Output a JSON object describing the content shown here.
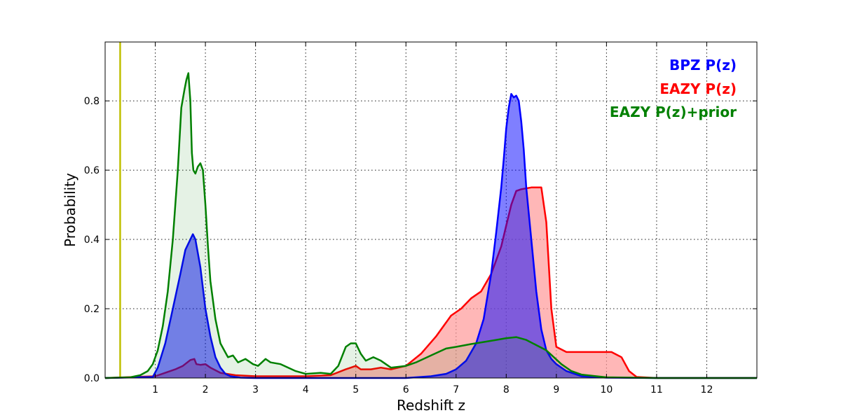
{
  "chart_data": {
    "type": "area",
    "title": "",
    "xlabel": "Redshift z",
    "ylabel": "Probability",
    "xlim": [
      0,
      13
    ],
    "ylim": [
      0,
      0.97
    ],
    "grid": true,
    "legend_placement": "top-right",
    "x_ticks": [
      1,
      2,
      3,
      4,
      5,
      6,
      7,
      8,
      9,
      10,
      11,
      12
    ],
    "y_ticks": [
      0.0,
      0.2,
      0.4,
      0.6,
      0.8
    ],
    "y_tick_labels": [
      "0.0",
      "0.2",
      "0.4",
      "0.6",
      "0.8"
    ],
    "vline": {
      "x": 0.3,
      "color": "#bfbf00"
    },
    "series": [
      {
        "name": "EAZY P(z)",
        "color": "#ff0000",
        "fill": "#ff9999",
        "fill_opacity": 0.7,
        "x": [
          0,
          1.0,
          1.2,
          1.4,
          1.55,
          1.7,
          1.78,
          1.82,
          1.9,
          2.0,
          2.1,
          2.3,
          2.6,
          3.0,
          3.5,
          4.0,
          4.5,
          4.8,
          4.9,
          5.0,
          5.1,
          5.3,
          5.5,
          5.7,
          6.0,
          6.3,
          6.6,
          6.9,
          7.1,
          7.3,
          7.5,
          7.7,
          7.8,
          7.9,
          8.0,
          8.1,
          8.2,
          8.3,
          8.5,
          8.7,
          8.8,
          8.9,
          9.0,
          9.2,
          9.5,
          9.8,
          10.1,
          10.3,
          10.45,
          10.6,
          11.0,
          13.0
        ],
        "y": [
          0,
          0.005,
          0.015,
          0.025,
          0.035,
          0.052,
          0.055,
          0.04,
          0.038,
          0.04,
          0.03,
          0.015,
          0.008,
          0.005,
          0.005,
          0.005,
          0.008,
          0.025,
          0.03,
          0.035,
          0.025,
          0.025,
          0.03,
          0.025,
          0.035,
          0.07,
          0.12,
          0.18,
          0.2,
          0.23,
          0.25,
          0.3,
          0.34,
          0.38,
          0.44,
          0.5,
          0.54,
          0.545,
          0.55,
          0.55,
          0.45,
          0.2,
          0.09,
          0.075,
          0.075,
          0.075,
          0.075,
          0.06,
          0.02,
          0.003,
          0,
          0
        ]
      },
      {
        "name": "BPZ P(z)",
        "color": "#0000ff",
        "fill": "#0000ff",
        "fill_opacity": 0.5,
        "x": [
          0,
          0.95,
          1.05,
          1.2,
          1.35,
          1.5,
          1.6,
          1.7,
          1.75,
          1.8,
          1.9,
          2.0,
          2.1,
          2.2,
          2.3,
          2.4,
          2.5,
          2.7,
          3.0,
          6.0,
          6.5,
          6.8,
          7.0,
          7.2,
          7.4,
          7.55,
          7.7,
          7.8,
          7.9,
          7.95,
          8.0,
          8.05,
          8.1,
          8.15,
          8.2,
          8.25,
          8.3,
          8.35,
          8.4,
          8.5,
          8.6,
          8.7,
          8.8,
          8.9,
          9.0,
          9.2,
          9.5,
          10.0,
          11.0,
          13.0
        ],
        "y": [
          0,
          0.003,
          0.03,
          0.1,
          0.2,
          0.3,
          0.37,
          0.4,
          0.415,
          0.4,
          0.32,
          0.2,
          0.12,
          0.06,
          0.03,
          0.012,
          0.005,
          0.001,
          0,
          0,
          0.005,
          0.012,
          0.025,
          0.05,
          0.1,
          0.17,
          0.3,
          0.42,
          0.55,
          0.63,
          0.72,
          0.78,
          0.82,
          0.81,
          0.815,
          0.8,
          0.74,
          0.66,
          0.55,
          0.4,
          0.25,
          0.14,
          0.08,
          0.055,
          0.04,
          0.02,
          0.005,
          0.001,
          0,
          0
        ]
      },
      {
        "name": "EAZY P(z)+prior",
        "color": "#008000",
        "fill": "#008000",
        "fill_opacity": 0.1,
        "x": [
          0,
          0.5,
          0.7,
          0.85,
          0.95,
          1.05,
          1.15,
          1.25,
          1.35,
          1.45,
          1.52,
          1.58,
          1.62,
          1.66,
          1.7,
          1.73,
          1.76,
          1.8,
          1.85,
          1.9,
          1.95,
          2.0,
          2.05,
          2.1,
          2.2,
          2.3,
          2.45,
          2.55,
          2.65,
          2.8,
          2.95,
          3.05,
          3.2,
          3.3,
          3.5,
          3.8,
          4.0,
          4.3,
          4.5,
          4.65,
          4.8,
          4.9,
          5.0,
          5.1,
          5.2,
          5.35,
          5.5,
          5.7,
          6.0,
          6.2,
          6.5,
          6.8,
          7.0,
          7.3,
          7.6,
          7.8,
          8.0,
          8.2,
          8.4,
          8.6,
          8.8,
          8.95,
          9.1,
          9.3,
          9.5,
          9.8,
          10.0,
          10.5,
          11.0,
          12.0,
          13.0
        ],
        "y": [
          0,
          0.002,
          0.008,
          0.02,
          0.04,
          0.08,
          0.15,
          0.25,
          0.4,
          0.6,
          0.78,
          0.83,
          0.86,
          0.88,
          0.8,
          0.65,
          0.6,
          0.59,
          0.61,
          0.62,
          0.6,
          0.5,
          0.38,
          0.28,
          0.17,
          0.1,
          0.06,
          0.065,
          0.045,
          0.055,
          0.04,
          0.035,
          0.055,
          0.045,
          0.04,
          0.02,
          0.012,
          0.015,
          0.012,
          0.035,
          0.09,
          0.1,
          0.1,
          0.07,
          0.05,
          0.06,
          0.05,
          0.03,
          0.035,
          0.045,
          0.065,
          0.085,
          0.09,
          0.098,
          0.105,
          0.11,
          0.115,
          0.118,
          0.11,
          0.095,
          0.08,
          0.06,
          0.04,
          0.02,
          0.01,
          0.005,
          0.002,
          0.001,
          0,
          0,
          0
        ]
      }
    ]
  }
}
